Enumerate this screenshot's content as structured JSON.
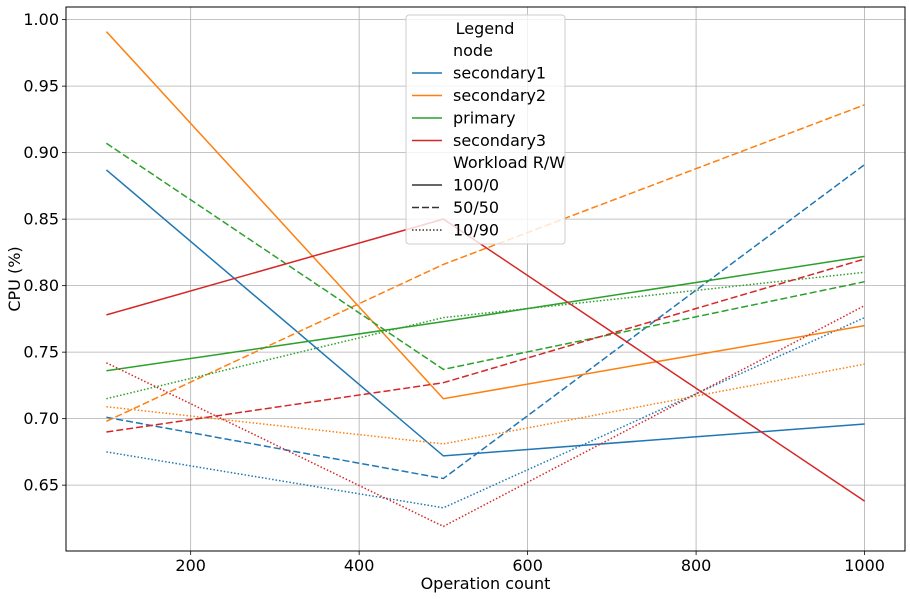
{
  "chart_data": {
    "type": "line",
    "xlabel": "Operation count",
    "ylabel": "CPU (%)",
    "xlim": [
      52,
      1048
    ],
    "ylim": [
      0.6005,
      1.0095
    ],
    "xticks": [
      200,
      400,
      600,
      800,
      1000
    ],
    "yticks": [
      0.65,
      0.7,
      0.75,
      0.8,
      0.85,
      0.9,
      0.95,
      1.0
    ],
    "xtick_labels": [
      "200",
      "400",
      "600",
      "800",
      "1000"
    ],
    "ytick_labels": [
      "0.65",
      "0.70",
      "0.75",
      "0.80",
      "0.85",
      "0.90",
      "0.95",
      "1.00"
    ],
    "grid": true,
    "x": [
      100,
      500,
      1000
    ],
    "legend": {
      "title": "Legend",
      "placement": "upper-center",
      "node_header": "node",
      "workload_header": "Workload R/W",
      "nodes": [
        {
          "name": "secondary1",
          "color": "#1f77b4"
        },
        {
          "name": "secondary2",
          "color": "#ff7f0e"
        },
        {
          "name": "primary",
          "color": "#2ca02c"
        },
        {
          "name": "secondary3",
          "color": "#d62728"
        }
      ],
      "workloads": [
        {
          "name": "100/0",
          "style": "solid"
        },
        {
          "name": "50/50",
          "style": "dashed"
        },
        {
          "name": "10/90",
          "style": "dotted"
        }
      ]
    },
    "series": [
      {
        "node": "secondary1",
        "workload": "100/0",
        "color": "#1f77b4",
        "style": "solid",
        "values": [
          0.887,
          0.672,
          0.696
        ]
      },
      {
        "node": "secondary1",
        "workload": "50/50",
        "color": "#1f77b4",
        "style": "dashed",
        "values": [
          0.701,
          0.655,
          0.891
        ]
      },
      {
        "node": "secondary1",
        "workload": "10/90",
        "color": "#1f77b4",
        "style": "dotted",
        "values": [
          0.675,
          0.633,
          0.776
        ]
      },
      {
        "node": "secondary2",
        "workload": "100/0",
        "color": "#ff7f0e",
        "style": "solid",
        "values": [
          0.991,
          0.715,
          0.77
        ]
      },
      {
        "node": "secondary2",
        "workload": "50/50",
        "color": "#ff7f0e",
        "style": "dashed",
        "values": [
          0.698,
          0.816,
          0.936
        ]
      },
      {
        "node": "secondary2",
        "workload": "10/90",
        "color": "#ff7f0e",
        "style": "dotted",
        "values": [
          0.709,
          0.681,
          0.741
        ]
      },
      {
        "node": "primary",
        "workload": "100/0",
        "color": "#2ca02c",
        "style": "solid",
        "values": [
          0.736,
          0.773,
          0.822
        ]
      },
      {
        "node": "primary",
        "workload": "50/50",
        "color": "#2ca02c",
        "style": "dashed",
        "values": [
          0.907,
          0.737,
          0.803
        ]
      },
      {
        "node": "primary",
        "workload": "10/90",
        "color": "#2ca02c",
        "style": "dotted",
        "values": [
          0.715,
          0.776,
          0.81
        ]
      },
      {
        "node": "secondary3",
        "workload": "100/0",
        "color": "#d62728",
        "style": "solid",
        "values": [
          0.778,
          0.85,
          0.638
        ]
      },
      {
        "node": "secondary3",
        "workload": "50/50",
        "color": "#d62728",
        "style": "dashed",
        "values": [
          0.69,
          0.727,
          0.82
        ]
      },
      {
        "node": "secondary3",
        "workload": "10/90",
        "color": "#d62728",
        "style": "dotted",
        "values": [
          0.742,
          0.619,
          0.785
        ]
      }
    ]
  }
}
